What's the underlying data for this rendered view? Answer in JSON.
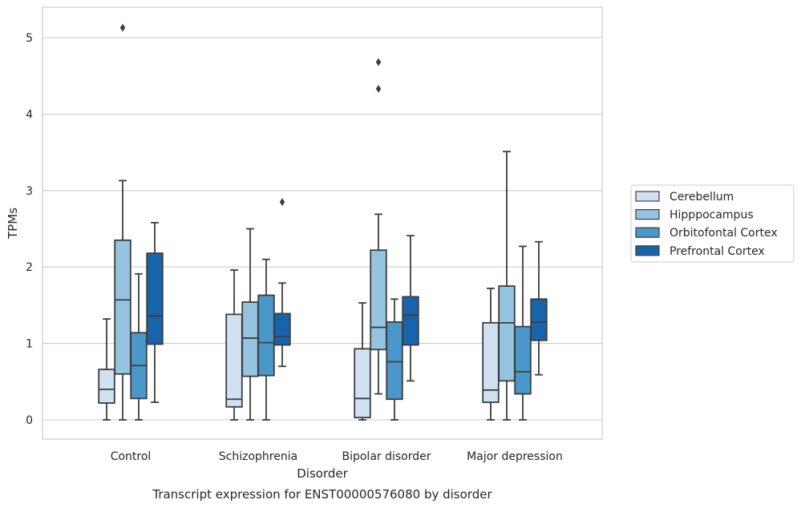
{
  "chart_data": {
    "type": "box",
    "title": "Transcript expression for ENST00000576080 by disorder",
    "xlabel": "Disorder",
    "ylabel": "TPMs",
    "ylim": [
      -0.25,
      5.4
    ],
    "yticks": [
      0,
      1,
      2,
      3,
      4,
      5
    ],
    "grid": "horizontal",
    "legend_position": "right",
    "categories": [
      "Control",
      "Schizophrenia",
      "Bipolar disorder",
      "Major depression"
    ],
    "series": [
      {
        "name": "Cerebellum",
        "color": "#d0e1f2",
        "boxes": [
          {
            "whislo": 0.0,
            "q1": 0.22,
            "med": 0.4,
            "q3": 0.66,
            "whishi": 1.32,
            "fliers": []
          },
          {
            "whislo": 0.0,
            "q1": 0.17,
            "med": 0.27,
            "q3": 1.38,
            "whishi": 1.96,
            "fliers": []
          },
          {
            "whislo": 0.0,
            "q1": 0.03,
            "med": 0.28,
            "q3": 0.93,
            "whishi": 1.53,
            "fliers": []
          },
          {
            "whislo": 0.0,
            "q1": 0.23,
            "med": 0.39,
            "q3": 1.27,
            "whishi": 1.72,
            "fliers": []
          }
        ]
      },
      {
        "name": "Hipppocampus",
        "color": "#94c4df",
        "boxes": [
          {
            "whislo": 0.0,
            "q1": 0.6,
            "med": 1.57,
            "q3": 2.35,
            "whishi": 3.13,
            "fliers": [
              5.13
            ]
          },
          {
            "whislo": 0.0,
            "q1": 0.57,
            "med": 1.07,
            "q3": 1.54,
            "whishi": 2.5,
            "fliers": []
          },
          {
            "whislo": 0.34,
            "q1": 0.92,
            "med": 1.21,
            "q3": 2.22,
            "whishi": 2.69,
            "fliers": [
              4.33,
              4.68
            ]
          },
          {
            "whislo": 0.0,
            "q1": 0.51,
            "med": 1.27,
            "q3": 1.75,
            "whishi": 3.51,
            "fliers": []
          }
        ]
      },
      {
        "name": "Orbitofontal Cortex",
        "color": "#4a98c9",
        "boxes": [
          {
            "whislo": 0.0,
            "q1": 0.28,
            "med": 0.71,
            "q3": 1.14,
            "whishi": 1.91,
            "fliers": []
          },
          {
            "whislo": 0.0,
            "q1": 0.58,
            "med": 1.01,
            "q3": 1.63,
            "whishi": 2.1,
            "fliers": []
          },
          {
            "whislo": 0.0,
            "q1": 0.27,
            "med": 0.76,
            "q3": 1.28,
            "whishi": 1.58,
            "fliers": []
          },
          {
            "whislo": 0.0,
            "q1": 0.34,
            "med": 0.63,
            "q3": 1.22,
            "whishi": 2.27,
            "fliers": []
          }
        ]
      },
      {
        "name": "Prefrontal Cortex",
        "color": "#1764ab",
        "boxes": [
          {
            "whislo": 0.23,
            "q1": 0.99,
            "med": 1.36,
            "q3": 2.18,
            "whishi": 2.58,
            "fliers": []
          },
          {
            "whislo": 0.7,
            "q1": 0.98,
            "med": 1.09,
            "q3": 1.39,
            "whishi": 1.79,
            "fliers": [
              2.85
            ]
          },
          {
            "whislo": 0.51,
            "q1": 0.98,
            "med": 1.37,
            "q3": 1.61,
            "whishi": 2.41,
            "fliers": []
          },
          {
            "whislo": 0.59,
            "q1": 1.04,
            "med": 1.28,
            "q3": 1.58,
            "whishi": 2.33,
            "fliers": []
          }
        ]
      }
    ]
  }
}
